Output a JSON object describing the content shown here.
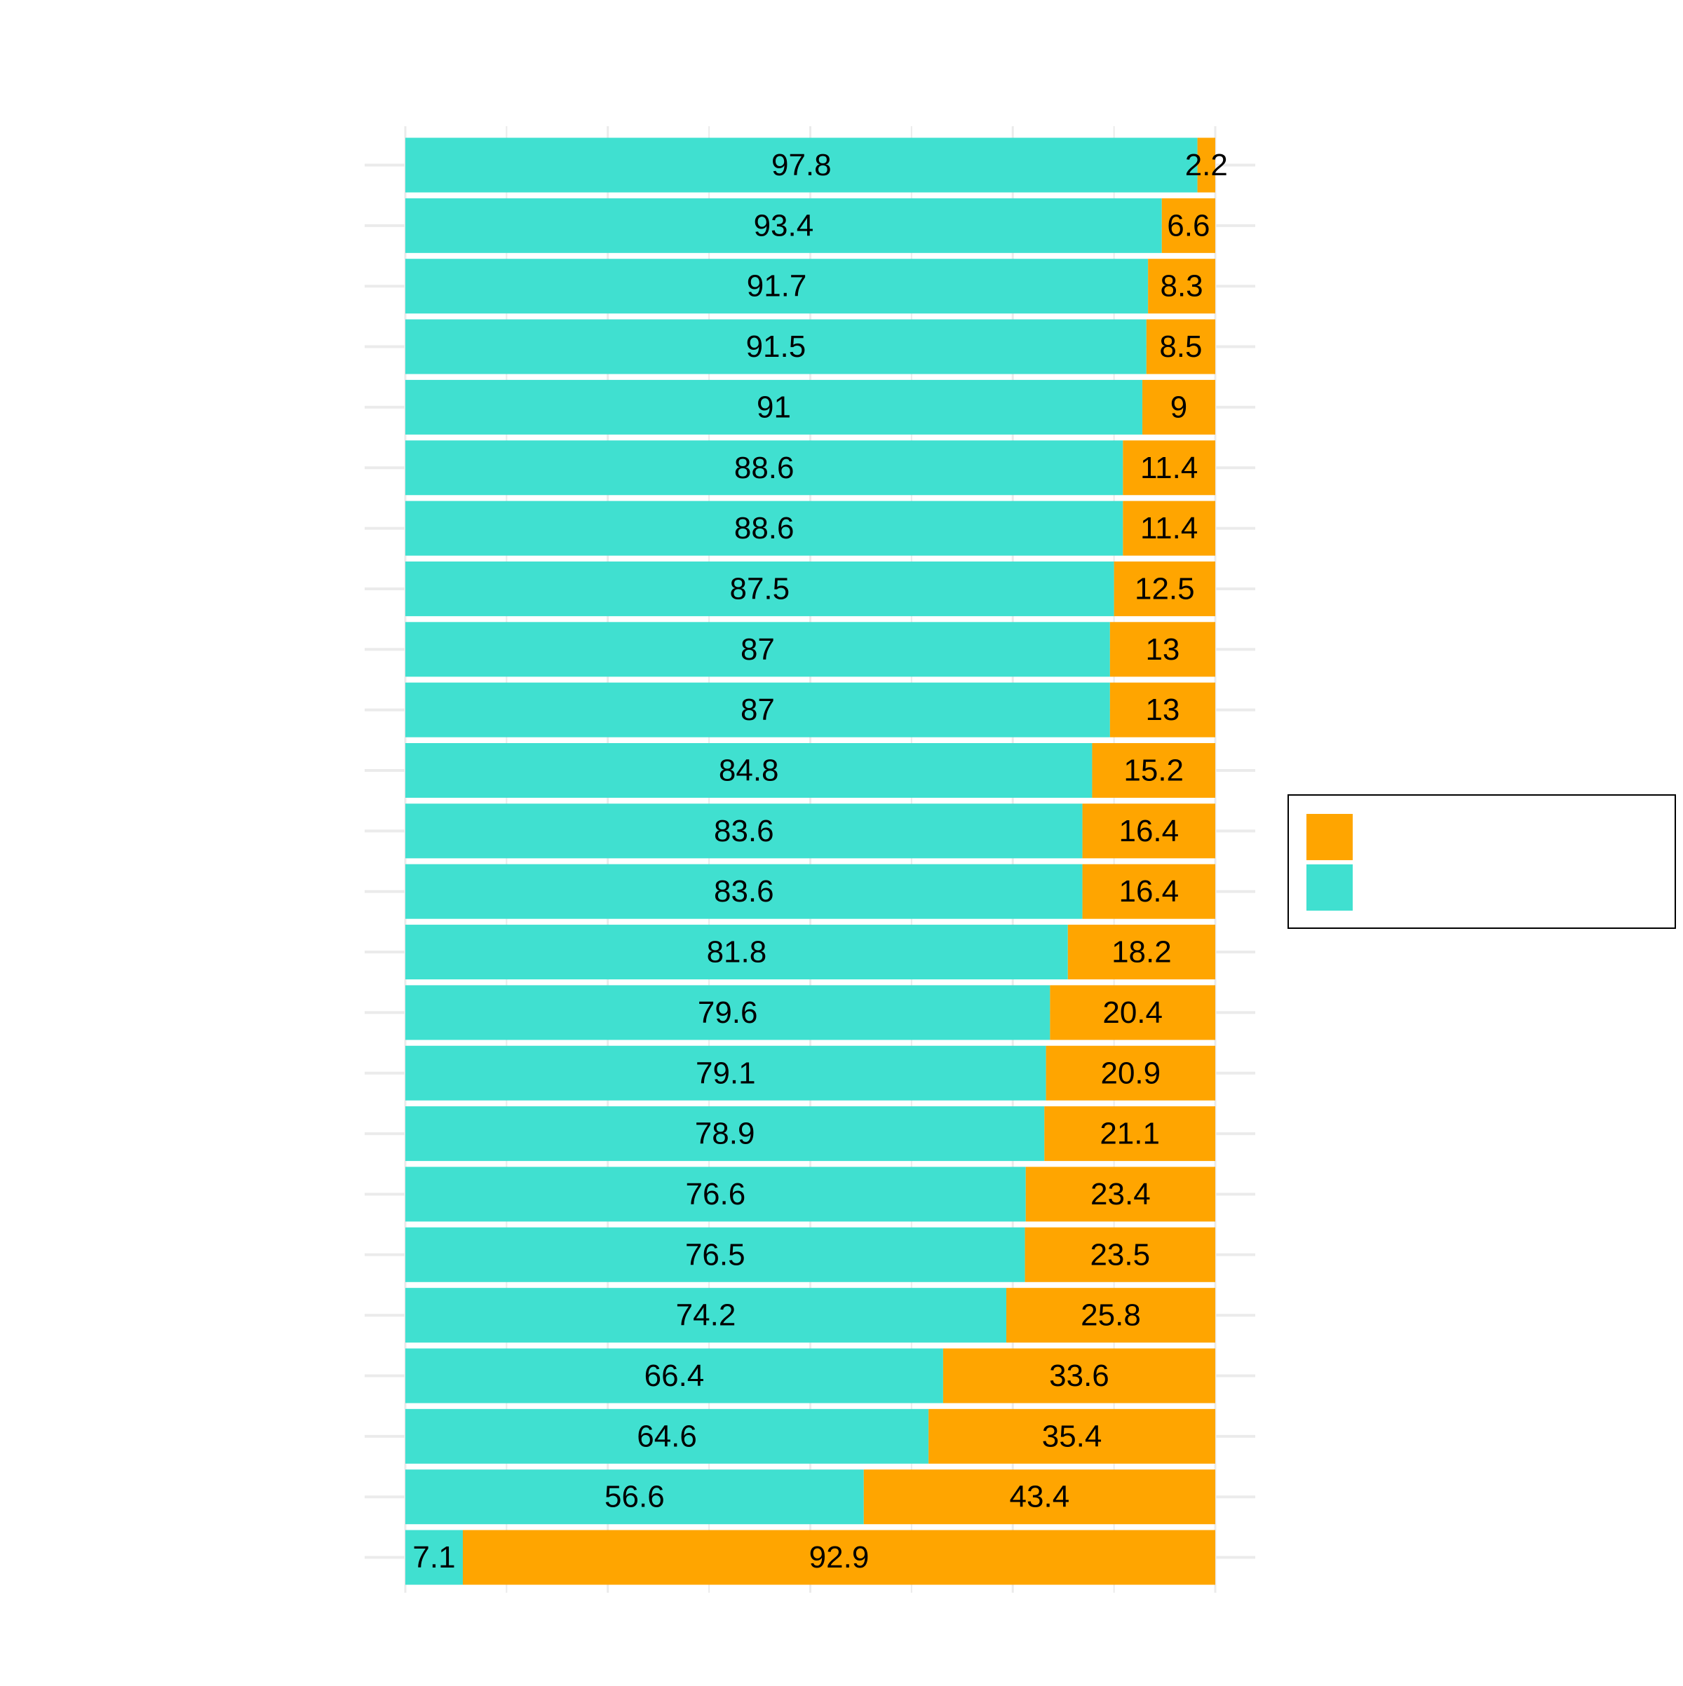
{
  "chart_data": {
    "type": "bar",
    "orientation": "horizontal",
    "stacked": true,
    "title": "",
    "xlabel": "",
    "ylabel": "",
    "xlim": [
      0,
      100
    ],
    "grid": true,
    "legend_position": "right",
    "categories": [
      "",
      "",
      "",
      "",
      "",
      "",
      "",
      "",
      "",
      "",
      "",
      "",
      "",
      "",
      "",
      "",
      "",
      "",
      "",
      "",
      "",
      "",
      "",
      ""
    ],
    "series": [
      {
        "color": "#40E0D0",
        "values": [
          97.8,
          93.4,
          91.7,
          91.5,
          91,
          88.6,
          88.6,
          87.5,
          87,
          87,
          84.8,
          83.6,
          83.6,
          81.8,
          79.6,
          79.1,
          78.9,
          76.6,
          76.5,
          74.2,
          66.4,
          64.6,
          56.6,
          7.1
        ],
        "labels": [
          "97.8",
          "93.4",
          "91.7",
          "91.5",
          "91",
          "88.6",
          "88.6",
          "87.5",
          "87",
          "87",
          "84.8",
          "83.6",
          "83.6",
          "81.8",
          "79.6",
          "79.1",
          "78.9",
          "76.6",
          "76.5",
          "74.2",
          "66.4",
          "64.6",
          "56.6",
          "7.1"
        ]
      },
      {
        "color": "#FFA500",
        "values": [
          2.2,
          6.6,
          8.3,
          8.5,
          9,
          11.4,
          11.4,
          12.5,
          13,
          13,
          15.2,
          16.4,
          16.4,
          18.2,
          20.4,
          20.9,
          21.1,
          23.4,
          23.5,
          25.8,
          33.6,
          35.4,
          43.4,
          92.9
        ],
        "labels": [
          "2.2",
          "6.6",
          "8.3",
          "8.5",
          "9",
          "11.4",
          "11.4",
          "12.5",
          "13",
          "13",
          "15.2",
          "16.4",
          "16.4",
          "18.2",
          "20.4",
          "20.9",
          "21.1",
          "23.4",
          "23.5",
          "25.8",
          "33.6",
          "35.4",
          "43.4",
          "92.9"
        ]
      }
    ],
    "legend": {
      "entries": [
        {
          "color": "#FFA500",
          "label": ""
        },
        {
          "color": "#40E0D0",
          "label": ""
        }
      ]
    }
  }
}
